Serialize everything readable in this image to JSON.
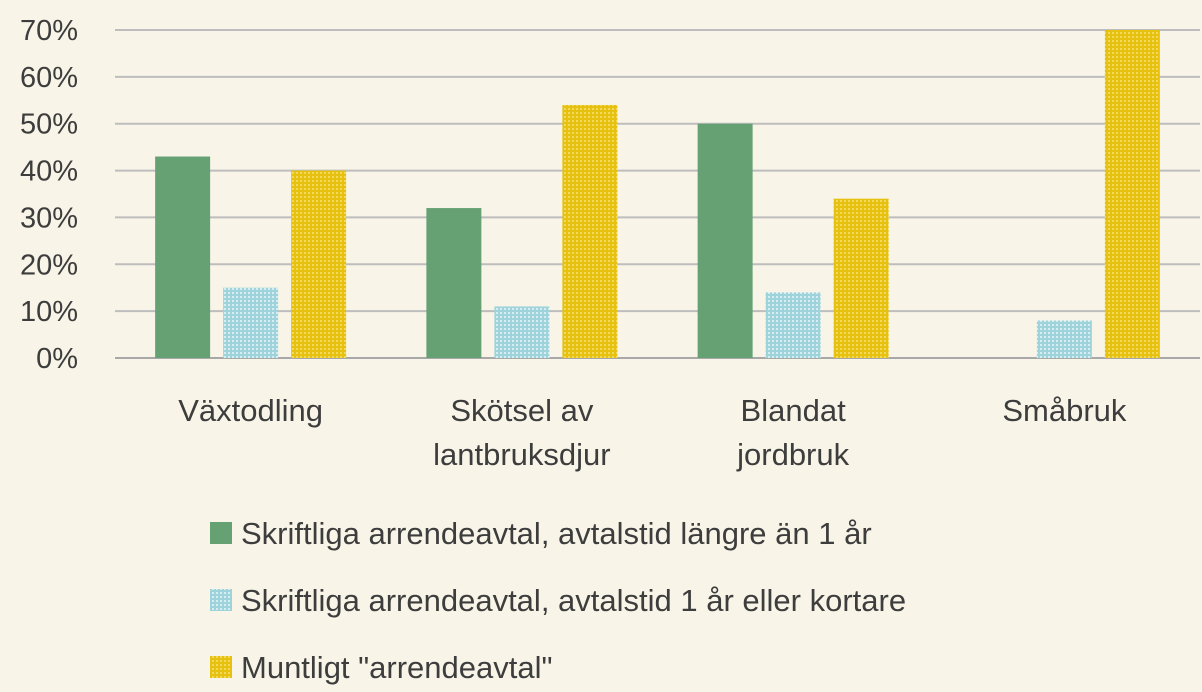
{
  "chart_data": {
    "type": "bar",
    "categories": [
      [
        "Växtodling"
      ],
      [
        "Skötsel av",
        "lantbruksdjur"
      ],
      [
        "Blandat",
        "jordbruk"
      ],
      [
        "Småbruk"
      ]
    ],
    "series": [
      {
        "name": "Skriftliga arrendeavtal, avtalstid längre än 1 år",
        "values": [
          43,
          32,
          50,
          0
        ],
        "color": "#66a174",
        "pattern": "solid"
      },
      {
        "name": "Skriftliga arrendeavtal, avtalstid 1 år eller kortare",
        "values": [
          15,
          11,
          14,
          8
        ],
        "color": "#9fd3dc",
        "pattern": "dotted"
      },
      {
        "name": "Muntligt \"arrendeavtal\"",
        "values": [
          40,
          54,
          34,
          70
        ],
        "color": "#e6c10f",
        "pattern": "dotted"
      }
    ],
    "y_ticks": [
      "0%",
      "10%",
      "20%",
      "30%",
      "40%",
      "50%",
      "60%",
      "70%"
    ],
    "ylim": [
      0,
      70
    ],
    "grid": true,
    "legend_placement": "bottom",
    "title": "",
    "xlabel": "",
    "ylabel": ""
  }
}
